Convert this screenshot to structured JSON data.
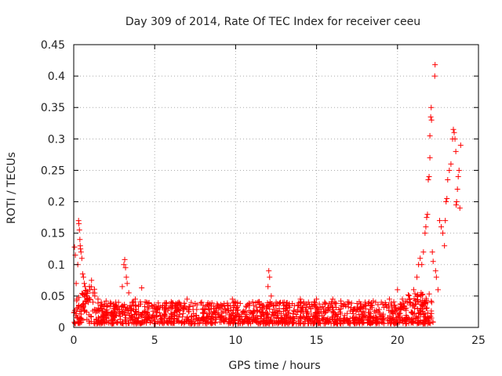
{
  "chart_data": {
    "type": "scatter",
    "title": "Day 309 of 2014, Rate Of TEC Index for receiver ceeu",
    "xlabel": "GPS time / hours",
    "ylabel": "ROTI / TECUs",
    "xlim": [
      0,
      25
    ],
    "ylim": [
      0,
      0.45
    ],
    "xticks": [
      0,
      5,
      10,
      15,
      20,
      25
    ],
    "yticks": [
      0,
      0.05,
      0.1,
      0.15,
      0.2,
      0.25,
      0.3,
      0.35,
      0.4,
      0.45
    ],
    "xtick_labels": [
      "0",
      "5",
      "10",
      "15",
      "20",
      "25"
    ],
    "ytick_labels": [
      "0",
      "0.05",
      "0.1",
      "0.15",
      "0.2",
      "0.25",
      "0.3",
      "0.35",
      "0.4",
      "0.45"
    ],
    "grid": true,
    "marker": "+",
    "color": "#ff0000",
    "series": [
      {
        "name": "ROTI",
        "points": [
          [
            0.05,
            0.128
          ],
          [
            0.1,
            0.115
          ],
          [
            0.15,
            0.07
          ],
          [
            0.2,
            0.045
          ],
          [
            0.25,
            0.1
          ],
          [
            0.3,
            0.17
          ],
          [
            0.32,
            0.165
          ],
          [
            0.35,
            0.155
          ],
          [
            0.38,
            0.14
          ],
          [
            0.4,
            0.13
          ],
          [
            0.42,
            0.125
          ],
          [
            0.45,
            0.12
          ],
          [
            0.5,
            0.11
          ],
          [
            0.55,
            0.085
          ],
          [
            0.6,
            0.08
          ],
          [
            0.65,
            0.07
          ],
          [
            0.7,
            0.065
          ],
          [
            0.75,
            0.055
          ],
          [
            0.8,
            0.05
          ],
          [
            0.85,
            0.045
          ],
          [
            0.9,
            0.04
          ],
          [
            1.0,
            0.06
          ],
          [
            1.1,
            0.075
          ],
          [
            1.2,
            0.055
          ],
          [
            1.3,
            0.05
          ],
          [
            1.5,
            0.045
          ],
          [
            1.7,
            0.04
          ],
          [
            2.0,
            0.042
          ],
          [
            2.3,
            0.038
          ],
          [
            2.6,
            0.04
          ],
          [
            3.0,
            0.065
          ],
          [
            3.1,
            0.1
          ],
          [
            3.15,
            0.108
          ],
          [
            3.2,
            0.095
          ],
          [
            3.25,
            0.08
          ],
          [
            3.3,
            0.07
          ],
          [
            3.4,
            0.055
          ],
          [
            3.6,
            0.04
          ],
          [
            3.8,
            0.045
          ],
          [
            4.0,
            0.035
          ],
          [
            4.2,
            0.063
          ],
          [
            4.5,
            0.04
          ],
          [
            5.0,
            0.03
          ],
          [
            5.5,
            0.035
          ],
          [
            6.0,
            0.032
          ],
          [
            6.5,
            0.04
          ],
          [
            7.0,
            0.045
          ],
          [
            7.5,
            0.038
          ],
          [
            8.0,
            0.035
          ],
          [
            8.5,
            0.03
          ],
          [
            9.0,
            0.032
          ],
          [
            9.5,
            0.035
          ],
          [
            9.8,
            0.045
          ],
          [
            10.0,
            0.04
          ],
          [
            10.5,
            0.025
          ],
          [
            11.0,
            0.022
          ],
          [
            11.5,
            0.025
          ],
          [
            11.9,
            0.03
          ],
          [
            12.0,
            0.065
          ],
          [
            12.05,
            0.09
          ],
          [
            12.1,
            0.08
          ],
          [
            12.2,
            0.05
          ],
          [
            12.5,
            0.04
          ],
          [
            13.0,
            0.04
          ],
          [
            13.5,
            0.038
          ],
          [
            14.0,
            0.045
          ],
          [
            14.5,
            0.04
          ],
          [
            15.0,
            0.045
          ],
          [
            15.5,
            0.04
          ],
          [
            16.0,
            0.045
          ],
          [
            16.5,
            0.042
          ],
          [
            17.0,
            0.04
          ],
          [
            17.5,
            0.038
          ],
          [
            18.0,
            0.04
          ],
          [
            18.5,
            0.042
          ],
          [
            19.0,
            0.04
          ],
          [
            19.5,
            0.045
          ],
          [
            20.0,
            0.06
          ],
          [
            20.3,
            0.045
          ],
          [
            20.6,
            0.04
          ],
          [
            21.0,
            0.06
          ],
          [
            21.2,
            0.08
          ],
          [
            21.3,
            0.1
          ],
          [
            21.4,
            0.11
          ],
          [
            21.5,
            0.1
          ],
          [
            21.6,
            0.12
          ],
          [
            21.7,
            0.15
          ],
          [
            21.75,
            0.16
          ],
          [
            21.8,
            0.175
          ],
          [
            21.85,
            0.18
          ],
          [
            21.9,
            0.235
          ],
          [
            21.95,
            0.24
          ],
          [
            22.0,
            0.27
          ],
          [
            22.0,
            0.305
          ],
          [
            22.05,
            0.335
          ],
          [
            22.08,
            0.35
          ],
          [
            22.1,
            0.33
          ],
          [
            22.15,
            0.12
          ],
          [
            22.2,
            0.105
          ],
          [
            22.3,
            0.4
          ],
          [
            22.32,
            0.418
          ],
          [
            22.35,
            0.09
          ],
          [
            22.4,
            0.08
          ],
          [
            22.5,
            0.06
          ],
          [
            22.6,
            0.17
          ],
          [
            22.7,
            0.16
          ],
          [
            22.8,
            0.15
          ],
          [
            22.9,
            0.13
          ],
          [
            22.95,
            0.17
          ],
          [
            23.0,
            0.2
          ],
          [
            23.05,
            0.205
          ],
          [
            23.1,
            0.235
          ],
          [
            23.2,
            0.25
          ],
          [
            23.3,
            0.26
          ],
          [
            23.4,
            0.3
          ],
          [
            23.45,
            0.315
          ],
          [
            23.5,
            0.31
          ],
          [
            23.55,
            0.3
          ],
          [
            23.6,
            0.28
          ],
          [
            23.62,
            0.195
          ],
          [
            23.65,
            0.2
          ],
          [
            23.7,
            0.22
          ],
          [
            23.75,
            0.24
          ],
          [
            23.8,
            0.25
          ],
          [
            23.85,
            0.19
          ],
          [
            23.9,
            0.29
          ]
        ]
      }
    ]
  }
}
